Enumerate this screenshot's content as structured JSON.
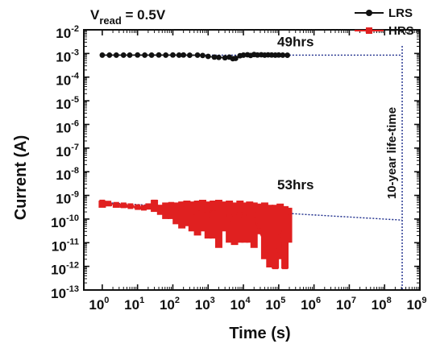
{
  "chart_data": {
    "type": "scatter",
    "title": "",
    "xlabel": "Time (s)",
    "ylabel": "Current (A)",
    "x_scale": "log",
    "y_scale": "log",
    "xlim": [
      0.3,
      1000000000
    ],
    "ylim": [
      1e-13,
      0.01
    ],
    "x_ticks": [
      {
        "base": "10",
        "exp": "0",
        "value": 1
      },
      {
        "base": "10",
        "exp": "1",
        "value": 10
      },
      {
        "base": "10",
        "exp": "2",
        "value": 100
      },
      {
        "base": "10",
        "exp": "3",
        "value": 1000
      },
      {
        "base": "10",
        "exp": "4",
        "value": 10000
      },
      {
        "base": "10",
        "exp": "5",
        "value": 100000
      },
      {
        "base": "10",
        "exp": "6",
        "value": 1000000
      },
      {
        "base": "10",
        "exp": "7",
        "value": 10000000
      },
      {
        "base": "10",
        "exp": "8",
        "value": 100000000
      },
      {
        "base": "10",
        "exp": "9",
        "value": 1000000000
      }
    ],
    "y_ticks": [
      {
        "base": "10",
        "exp": "-2",
        "value": 0.01
      },
      {
        "base": "10",
        "exp": "-3",
        "value": 0.001
      },
      {
        "base": "10",
        "exp": "-4",
        "value": 0.0001
      },
      {
        "base": "10",
        "exp": "-5",
        "value": 1e-05
      },
      {
        "base": "10",
        "exp": "-6",
        "value": 1e-06
      },
      {
        "base": "10",
        "exp": "-7",
        "value": 1e-07
      },
      {
        "base": "10",
        "exp": "-8",
        "value": 1e-08
      },
      {
        "base": "10",
        "exp": "-9",
        "value": 1e-09
      },
      {
        "base": "10",
        "exp": "-10",
        "value": 1e-10
      },
      {
        "base": "10",
        "exp": "-11",
        "value": 1e-11
      },
      {
        "base": "10",
        "exp": "-12",
        "value": 1e-12
      },
      {
        "base": "10",
        "exp": "-13",
        "value": 1e-13
      }
    ],
    "grid": false,
    "legend_position": "top-right",
    "condition_label": {
      "main": "V",
      "sub": "read",
      "rest": " = 0.5V"
    },
    "series": [
      {
        "name": "LRS",
        "color": "#111111",
        "marker": "circle",
        "x": [
          1,
          1.6,
          2.5,
          4,
          6,
          10,
          16,
          25,
          40,
          63,
          100,
          150,
          200,
          300,
          500,
          700,
          1000,
          1500,
          2000,
          3000,
          4000,
          5000,
          6000,
          8000,
          10000,
          13000,
          16000,
          20000,
          25000,
          32000,
          40000,
          50000,
          63000,
          80000,
          100000,
          130000,
          176000
        ],
        "y": [
          0.00085,
          0.00085,
          0.00085,
          0.00085,
          0.00085,
          0.00086,
          0.00085,
          0.00085,
          0.00086,
          0.00085,
          0.00086,
          0.00085,
          0.00086,
          0.00084,
          0.00085,
          0.00082,
          0.00075,
          0.0007,
          0.00068,
          0.00066,
          0.0007,
          0.0006,
          0.00062,
          0.0008,
          0.00085,
          0.00088,
          0.00082,
          0.0009,
          0.00086,
          0.00088,
          0.00085,
          0.00087,
          0.00086,
          0.00085,
          0.00086,
          0.00085,
          0.00084
        ]
      },
      {
        "name": "HRS",
        "color": "#e02020",
        "marker": "square",
        "x": [
          1,
          1.5,
          2.5,
          4,
          6.3,
          10,
          15,
          20,
          30,
          45,
          63,
          90,
          125,
          180,
          250,
          350,
          500,
          700,
          1000,
          1400,
          2000,
          2800,
          4000,
          5600,
          8000,
          11000,
          15000,
          20000,
          28000,
          40000,
          56000,
          80000,
          110000,
          150000,
          190000
        ],
        "y": [
          5e-10,
          4.5e-10,
          4e-10,
          3.8e-10,
          3.5e-10,
          3.2e-10,
          3e-10,
          3.5e-10,
          5e-10,
          3e-10,
          3.5e-10,
          4e-10,
          3e-10,
          2.5e-10,
          3e-10,
          2e-10,
          3e-10,
          2.5e-10,
          1.5e-10,
          3e-10,
          2e-10,
          2.5e-10,
          1e-10,
          2e-10,
          1.5e-10,
          2e-10,
          1e-10,
          1.5e-10,
          3e-11,
          1e-11,
          2e-12,
          1e-12,
          5e-11,
          1e-12,
          2e-10
        ],
        "y_min": [
          3e-10,
          3.5e-10,
          3e-10,
          3e-10,
          3e-10,
          2.8e-10,
          2.5e-10,
          2.5e-10,
          2e-10,
          1.5e-10,
          1e-10,
          1e-10,
          6e-11,
          4e-11,
          5e-11,
          3e-11,
          2e-11,
          3e-11,
          1.5e-11,
          1.5e-11,
          6e-12,
          3e-11,
          1e-11,
          8e-12,
          1e-11,
          1e-11,
          1e-11,
          6e-12,
          3e-11,
          2e-12,
          9e-13,
          8e-13,
          2e-12,
          8e-13,
          1e-11
        ],
        "y_max": [
          6e-10,
          5e-10,
          4.5e-10,
          4.5e-10,
          4e-10,
          3.5e-10,
          3.5e-10,
          4e-10,
          6.5e-10,
          4e-10,
          5e-10,
          5e-10,
          5e-10,
          5.5e-10,
          6e-10,
          5.5e-10,
          6e-10,
          6.5e-10,
          5.5e-10,
          6e-10,
          6.5e-10,
          5.5e-10,
          6e-10,
          5e-10,
          6e-10,
          5e-10,
          5.5e-10,
          5e-10,
          4.5e-10,
          5e-10,
          4e-10,
          4e-10,
          4.5e-10,
          3.5e-10,
          3e-10
        ]
      }
    ],
    "extrapolations": [
      {
        "series": "LRS",
        "color": "#1a2a8a",
        "x": [
          1,
          315000000
        ],
        "y": [
          0.00085,
          0.00085
        ]
      },
      {
        "series": "HRS",
        "color": "#1a2a8a",
        "x": [
          1,
          315000000
        ],
        "y": [
          5e-10,
          9e-11
        ]
      }
    ],
    "vertical_marker": {
      "x": 315000000,
      "label": "10-year life-time",
      "color": "#1a2a8a"
    },
    "annotations": [
      {
        "text": "49hrs",
        "x": 300000,
        "y": 0.002
      },
      {
        "text": "53hrs",
        "x": 300000,
        "y": 1.8e-09
      }
    ]
  }
}
